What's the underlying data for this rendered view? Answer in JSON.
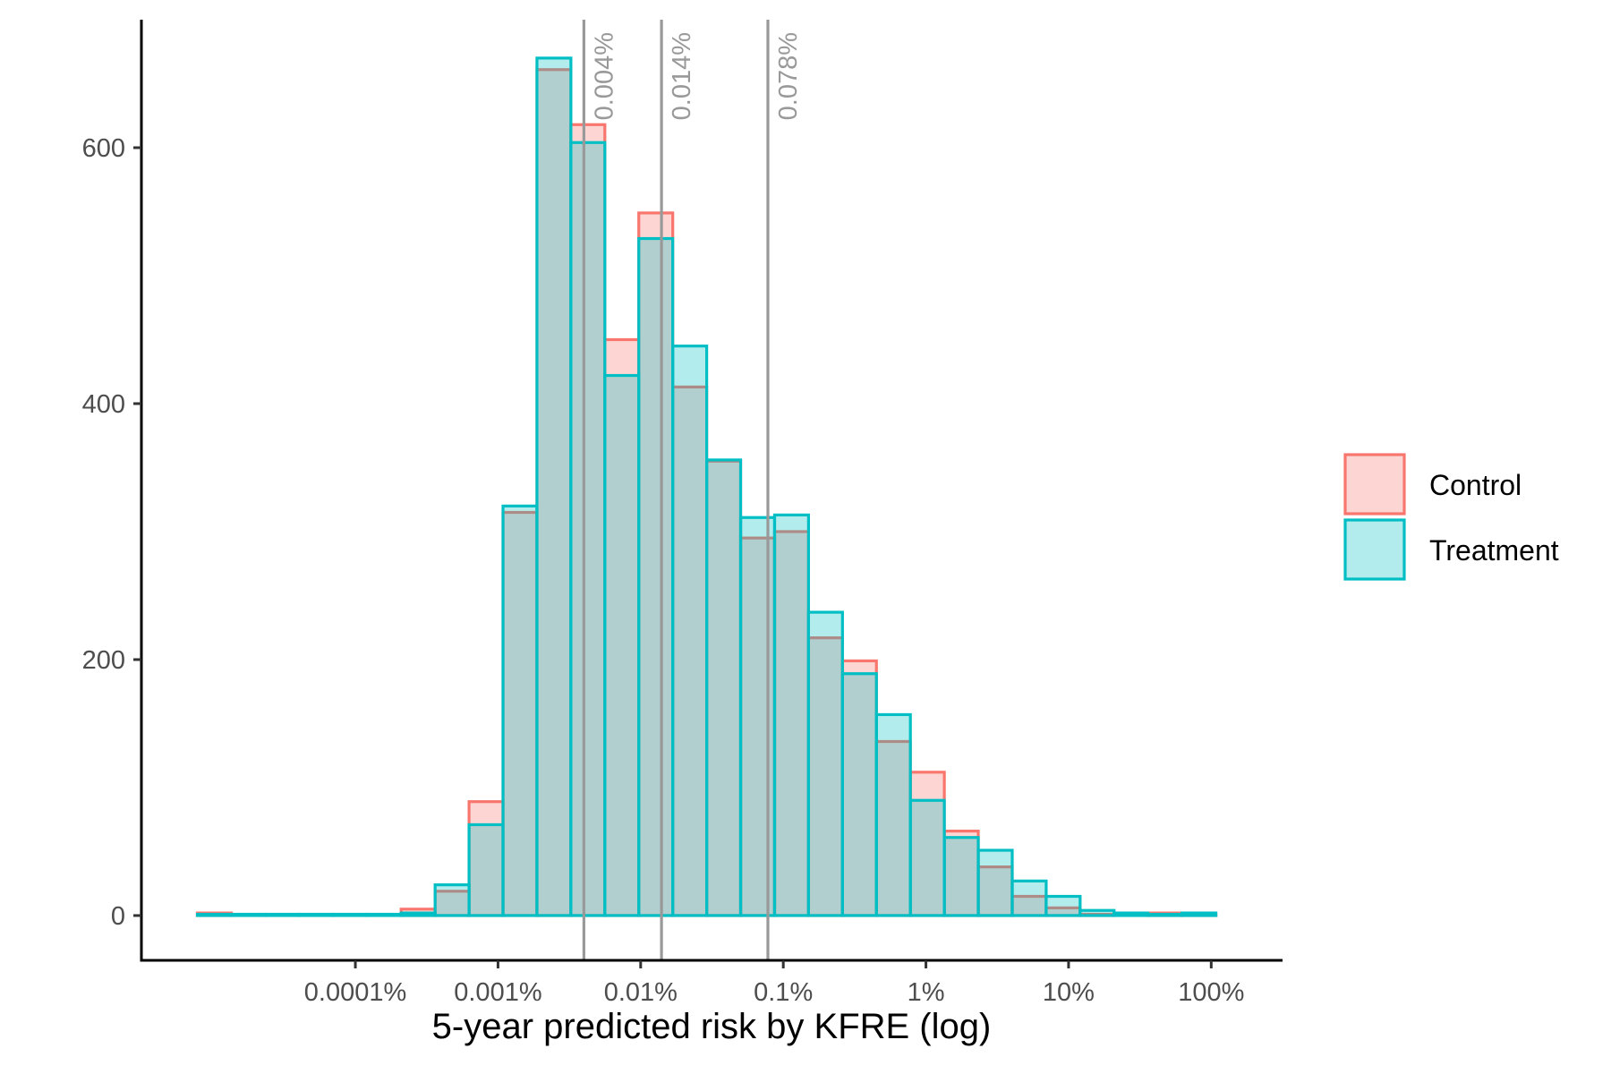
{
  "chart_data": {
    "type": "bar",
    "title": "",
    "xlabel": "5-year predicted risk by KFRE (log)",
    "ylabel": "",
    "x_scale": "log10",
    "x_ticks": [
      {
        "value": 0.0001,
        "label": "0.0001%"
      },
      {
        "value": 0.001,
        "label": "0.001%"
      },
      {
        "value": 0.01,
        "label": "0.01%"
      },
      {
        "value": 0.1,
        "label": "0.1%"
      },
      {
        "value": 1,
        "label": "1%"
      },
      {
        "value": 10,
        "label": "10%"
      },
      {
        "value": 100,
        "label": "100%"
      }
    ],
    "y_ticks": [
      0,
      200,
      400,
      600
    ],
    "ylim": [
      -35,
      700
    ],
    "xlim_log10": [
      -5.5,
      2.5
    ],
    "grid": false,
    "legend_position": "right",
    "bin_edges_log10": [
      -5.108,
      -4.869,
      -4.631,
      -4.393,
      -4.155,
      -3.917,
      -3.679,
      -3.441,
      -3.203,
      -2.965,
      -2.727,
      -2.489,
      -2.251,
      -2.013,
      -1.775,
      -1.537,
      -1.299,
      -1.061,
      -0.823,
      -0.585,
      -0.347,
      -0.109,
      0.129,
      0.367,
      0.605,
      0.843,
      1.081,
      1.319,
      1.557,
      1.795,
      2.033
    ],
    "series": [
      {
        "name": "Control",
        "color": "#F8766D",
        "values": [
          2,
          0,
          0,
          0,
          0,
          0,
          5,
          19,
          89,
          315,
          661,
          618,
          450,
          549,
          413,
          355,
          295,
          300,
          217,
          199,
          136,
          112,
          66,
          38,
          15,
          6,
          1,
          0,
          2,
          1
        ]
      },
      {
        "name": "Treatment",
        "color": "#00BFC4",
        "values": [
          1,
          1,
          1,
          1,
          1,
          1,
          2,
          24,
          71,
          320,
          670,
          604,
          422,
          529,
          445,
          356,
          311,
          313,
          237,
          189,
          157,
          90,
          61,
          51,
          27,
          15,
          4,
          2,
          1,
          2
        ]
      }
    ],
    "reference_lines": [
      {
        "value": 0.004,
        "label": "0.004%"
      },
      {
        "value": 0.014,
        "label": "0.014%"
      },
      {
        "value": 0.078,
        "label": "0.078%"
      }
    ]
  }
}
